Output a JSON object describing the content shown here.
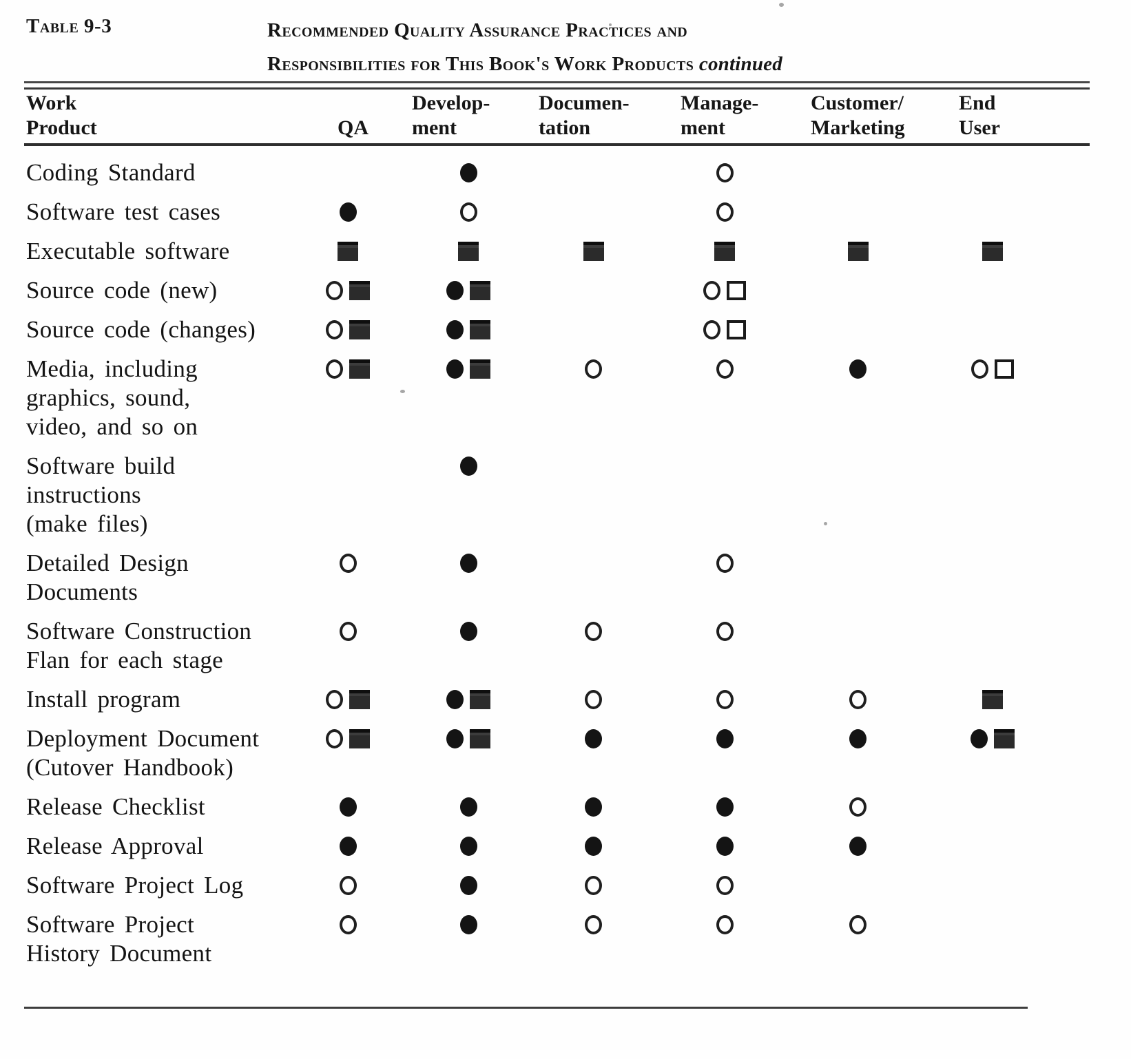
{
  "page": {
    "label": "Table 9-3",
    "title_line1": "Recommended Quality Assurance Practices and",
    "title_line2": "Responsibilities for This Book's Work Products",
    "title_continued": "continued"
  },
  "table": {
    "columns": [
      {
        "line1": "Work",
        "line2": "Product"
      },
      {
        "line1": "",
        "line2": "QA"
      },
      {
        "line1": "Develop-",
        "line2": "ment"
      },
      {
        "line1": "Documen-",
        "line2": "tation"
      },
      {
        "line1": "Manage-",
        "line2": "ment"
      },
      {
        "line1": "Customer/",
        "line2": "Marketing"
      },
      {
        "line1": "End",
        "line2": "User"
      }
    ],
    "symbols": {
      "fc": "filled-circle",
      "oc": "open-circle",
      "fs": "filled-square",
      "os": "open-square"
    },
    "rows": [
      {
        "product_lines": [
          "Coding Standard"
        ],
        "cells": [
          [],
          [
            "fc"
          ],
          [],
          [
            "oc"
          ],
          [],
          []
        ]
      },
      {
        "product_lines": [
          "Software test cases"
        ],
        "cells": [
          [
            "fc"
          ],
          [
            "oc"
          ],
          [],
          [
            "oc"
          ],
          [],
          []
        ]
      },
      {
        "product_lines": [
          "Executable software"
        ],
        "cells": [
          [
            "fs"
          ],
          [
            "fs"
          ],
          [
            "fs"
          ],
          [
            "fs"
          ],
          [
            "fs"
          ],
          [
            "fs"
          ]
        ]
      },
      {
        "product_lines": [
          "Source code (new)"
        ],
        "cells": [
          [
            "oc",
            "fs"
          ],
          [
            "fc",
            "fs"
          ],
          [],
          [
            "oc",
            "os"
          ],
          [],
          []
        ]
      },
      {
        "product_lines": [
          "Source code (changes)"
        ],
        "cells": [
          [
            "oc",
            "fs"
          ],
          [
            "fc",
            "fs"
          ],
          [],
          [
            "oc",
            "os"
          ],
          [],
          []
        ]
      },
      {
        "product_lines": [
          "Media, including",
          "graphics, sound,",
          "video, and so on"
        ],
        "cells": [
          [
            "oc",
            "fs"
          ],
          [
            "fc",
            "fs"
          ],
          [
            "oc"
          ],
          [
            "oc"
          ],
          [
            "fc"
          ],
          [
            "oc",
            "os"
          ]
        ]
      },
      {
        "product_lines": [
          "Software build",
          "instructions",
          "(make files)"
        ],
        "cells": [
          [],
          [
            "fc"
          ],
          [],
          [],
          [],
          []
        ]
      },
      {
        "product_lines": [
          "Detailed Design",
          "Documents"
        ],
        "cells": [
          [
            "oc"
          ],
          [
            "fc"
          ],
          [],
          [
            "oc"
          ],
          [],
          []
        ]
      },
      {
        "product_lines": [
          "Software Construction",
          "Flan for each stage"
        ],
        "cells": [
          [
            "oc"
          ],
          [
            "fc"
          ],
          [
            "oc"
          ],
          [
            "oc"
          ],
          [],
          []
        ]
      },
      {
        "product_lines": [
          "Install program"
        ],
        "cells": [
          [
            "oc",
            "fs"
          ],
          [
            "fc",
            "fs"
          ],
          [
            "oc"
          ],
          [
            "oc"
          ],
          [
            "oc"
          ],
          [
            "fs"
          ]
        ]
      },
      {
        "product_lines": [
          "Deployment Document",
          "(Cutover Handbook)"
        ],
        "cells": [
          [
            "oc",
            "fs"
          ],
          [
            "fc",
            "fs"
          ],
          [
            "fc"
          ],
          [
            "fc"
          ],
          [
            "fc"
          ],
          [
            "fc",
            "fs"
          ]
        ]
      },
      {
        "product_lines": [
          "Release Checklist"
        ],
        "cells": [
          [
            "fc"
          ],
          [
            "fc"
          ],
          [
            "fc"
          ],
          [
            "fc"
          ],
          [
            "oc"
          ],
          []
        ]
      },
      {
        "product_lines": [
          "Release Approval"
        ],
        "cells": [
          [
            "fc"
          ],
          [
            "fc"
          ],
          [
            "fc"
          ],
          [
            "fc"
          ],
          [
            "fc"
          ],
          []
        ]
      },
      {
        "product_lines": [
          "Software Project Log"
        ],
        "cells": [
          [
            "oc"
          ],
          [
            "fc"
          ],
          [
            "oc"
          ],
          [
            "oc"
          ],
          [],
          []
        ]
      },
      {
        "product_lines": [
          "Software Project",
          "History Document"
        ],
        "cells": [
          [
            "oc"
          ],
          [
            "fc"
          ],
          [
            "oc"
          ],
          [
            "oc"
          ],
          [
            "oc"
          ],
          []
        ]
      }
    ]
  }
}
